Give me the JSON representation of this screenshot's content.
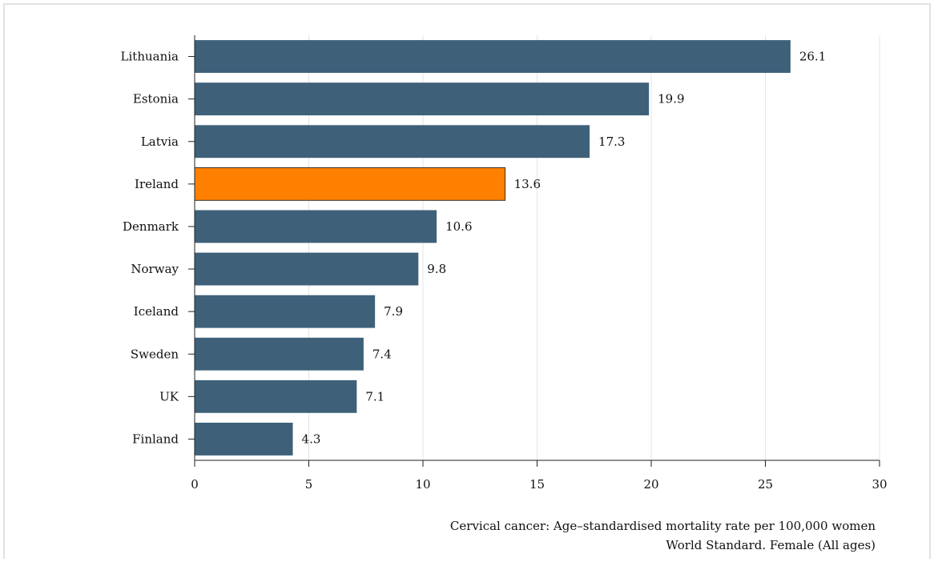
{
  "chart_data": {
    "type": "bar",
    "orientation": "horizontal",
    "categories": [
      "Lithuania",
      "Estonia",
      "Latvia",
      "Ireland",
      "Denmark",
      "Norway",
      "Iceland",
      "Sweden",
      "UK",
      "Finland"
    ],
    "values": [
      26.1,
      19.9,
      17.3,
      13.6,
      10.6,
      9.8,
      7.9,
      7.4,
      7.1,
      4.3
    ],
    "value_labels": [
      "26.1",
      "19.9",
      "17.3",
      "13.6",
      "10.6",
      "9.8",
      "7.9",
      "7.4",
      "7.1",
      "4.3"
    ],
    "highlight": "Ireland",
    "xlim": [
      0,
      30
    ],
    "xticks": [
      0,
      5,
      10,
      15,
      20,
      25,
      30
    ],
    "xtick_labels": [
      "0",
      "5",
      "10",
      "15",
      "20",
      "25",
      "30"
    ],
    "grid": true,
    "colors": {
      "bar": "#3e6179",
      "highlight": "#ff8000",
      "grid": "#e4e4e4",
      "axis": "#222222"
    },
    "notes": [
      "Cervical cancer: Age–standardised mortality rate per 100,000 women",
      "World Standard. Female (All ages)"
    ]
  }
}
